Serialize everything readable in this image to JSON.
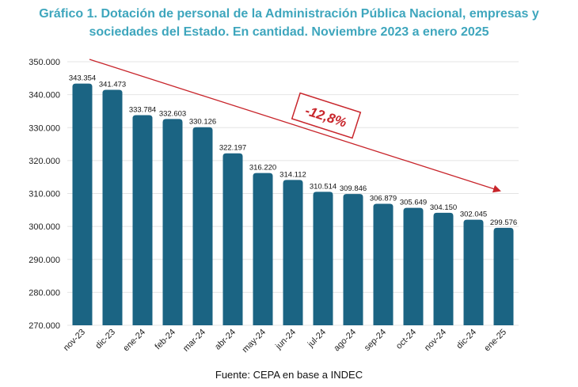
{
  "title_line1": "Gráfico 1. Dotación de personal de la Administración Pública Nacional, empresas y",
  "title_line2": "sociedades del Estado. En cantidad. Noviembre 2023 a enero 2025",
  "source": "Fuente: CEPA en base a INDEC",
  "colors": {
    "bar": "#1b6483",
    "title": "#3ea6bd",
    "arrow": "#c8252b",
    "grid": "#e4e4e4"
  },
  "chart_data": {
    "type": "bar",
    "categories": [
      "nov-23",
      "dic-23",
      "ene-24",
      "feb-24",
      "mar-24",
      "abr-24",
      "may-24",
      "jun-24",
      "jul-24",
      "ago-24",
      "sep-24",
      "oct-24",
      "nov-24",
      "dic-24",
      "ene-25"
    ],
    "values": [
      343354,
      341473,
      333784,
      332603,
      330126,
      322197,
      316220,
      314112,
      310514,
      309846,
      306879,
      305649,
      304150,
      302045,
      299576
    ],
    "value_labels": [
      "343.354",
      "341.473",
      "333.784",
      "332.603",
      "330.126",
      "322.197",
      "316.220",
      "314.112",
      "310.514",
      "309.846",
      "306.879",
      "305.649",
      "304.150",
      "302.045",
      "299.576"
    ],
    "ylim": [
      270000,
      350000
    ],
    "yticks": [
      270000,
      280000,
      290000,
      300000,
      310000,
      320000,
      330000,
      340000,
      350000
    ],
    "ytick_labels": [
      "270.000",
      "280.000",
      "290.000",
      "300.000",
      "310.000",
      "320.000",
      "330.000",
      "340.000",
      "350.000"
    ],
    "grid": true,
    "annotation": "-12,8%"
  }
}
